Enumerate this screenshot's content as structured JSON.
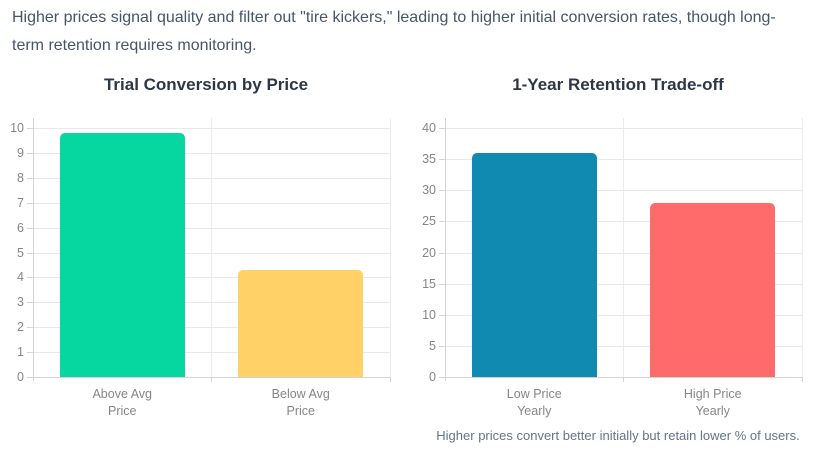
{
  "header": {
    "text": "Higher prices signal quality and filter out \"tire kickers,\" leading to higher initial conversion rates, though long-term retention requires monitoring."
  },
  "caption": {
    "text": "Higher prices convert better initially but retain lower % of users."
  },
  "colors": {
    "background": "#ffffff",
    "insight_text": "#475569",
    "title_text": "#2d3748",
    "axis_label_text": "#868686",
    "caption_text": "#64748b",
    "gridline": "#e9e9e9",
    "axis_line": "#d4d4d4",
    "bar_green": "#06d6a0",
    "bar_yellow": "#ffd166",
    "bar_blue": "#118ab2",
    "bar_red": "#ff6b6b"
  },
  "chart_data": [
    {
      "type": "bar",
      "title": "Trial Conversion by Price",
      "categories": [
        "Above Avg\nPrice",
        "Below Avg\nPrice"
      ],
      "values": [
        9.8,
        4.3
      ],
      "bar_colors": [
        "#06d6a0",
        "#ffd166"
      ],
      "ylim": [
        0,
        10
      ],
      "ytick_step": 1,
      "ytick_labels": [
        "0",
        "1",
        "2",
        "3",
        "4",
        "5",
        "6",
        "7",
        "8",
        "9",
        "10"
      ],
      "grid": true,
      "legend": "none"
    },
    {
      "type": "bar",
      "title": "1-Year Retention Trade-off",
      "categories": [
        "Low Price\nYearly",
        "High Price\nYearly"
      ],
      "values": [
        36,
        28
      ],
      "bar_colors": [
        "#118ab2",
        "#ff6b6b"
      ],
      "ylim": [
        0,
        40
      ],
      "ytick_step": 5,
      "ytick_labels": [
        "0",
        "5",
        "10",
        "15",
        "20",
        "25",
        "30",
        "35",
        "40"
      ],
      "grid": true,
      "legend": "none"
    }
  ]
}
